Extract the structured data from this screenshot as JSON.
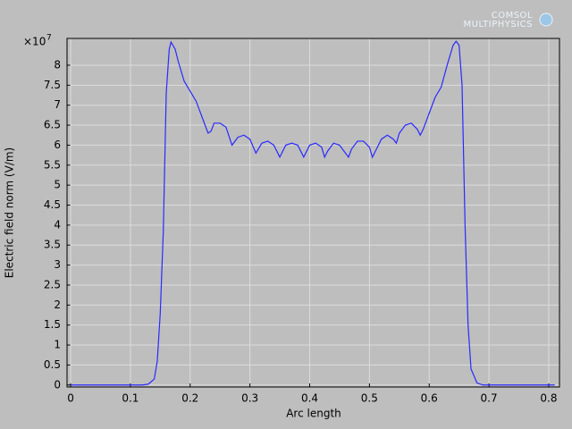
{
  "chart_data": {
    "type": "line",
    "xlabel": "Arc length",
    "ylabel": "Electric field norm (V/m)",
    "y_multiplier": {
      "base": "×10",
      "exponent": "7"
    },
    "x": [
      0,
      0.05,
      0.1,
      0.12,
      0.13,
      0.14,
      0.145,
      0.15,
      0.155,
      0.16,
      0.165,
      0.168,
      0.175,
      0.18,
      0.19,
      0.2,
      0.21,
      0.22,
      0.23,
      0.235,
      0.24,
      0.25,
      0.26,
      0.27,
      0.28,
      0.29,
      0.3,
      0.31,
      0.32,
      0.33,
      0.34,
      0.35,
      0.36,
      0.37,
      0.38,
      0.39,
      0.4,
      0.41,
      0.42,
      0.425,
      0.43,
      0.44,
      0.45,
      0.465,
      0.47,
      0.48,
      0.49,
      0.5,
      0.505,
      0.51,
      0.52,
      0.53,
      0.54,
      0.545,
      0.55,
      0.56,
      0.57,
      0.58,
      0.585,
      0.59,
      0.6,
      0.61,
      0.62,
      0.63,
      0.64,
      0.645,
      0.65,
      0.655,
      0.66,
      0.665,
      0.67,
      0.68,
      0.69,
      0.75,
      0.81
    ],
    "series": [
      {
        "name": "Electric field norm",
        "color": "#2a2aff",
        "values": [
          0,
          0,
          0,
          0,
          0.02,
          0.15,
          0.6,
          1.8,
          3.8,
          7.3,
          8.4,
          8.58,
          8.4,
          8.1,
          7.6,
          7.35,
          7.1,
          6.7,
          6.3,
          6.35,
          6.55,
          6.55,
          6.45,
          6.0,
          6.2,
          6.25,
          6.15,
          5.8,
          6.05,
          6.1,
          6.0,
          5.7,
          6.0,
          6.05,
          6.0,
          5.7,
          6.0,
          6.05,
          5.95,
          5.7,
          5.85,
          6.05,
          6.0,
          5.7,
          5.9,
          6.1,
          6.1,
          5.95,
          5.7,
          5.85,
          6.15,
          6.25,
          6.15,
          6.05,
          6.3,
          6.5,
          6.55,
          6.4,
          6.25,
          6.4,
          6.8,
          7.2,
          7.45,
          8.0,
          8.5,
          8.6,
          8.5,
          7.5,
          4.0,
          1.5,
          0.4,
          0.05,
          0,
          0,
          0
        ]
      }
    ],
    "xlim": [
      -0.006,
      0.818
    ],
    "ylim": [
      -0.05,
      8.67
    ],
    "xticks": [
      0,
      0.1,
      0.2,
      0.3,
      0.4,
      0.5,
      0.6,
      0.7,
      0.8
    ],
    "yticks": [
      0,
      0.5,
      1,
      1.5,
      2,
      2.5,
      3,
      3.5,
      4,
      4.5,
      5,
      5.5,
      6,
      6.5,
      7,
      7.5,
      8
    ],
    "grid": true
  },
  "logo": {
    "line1": "COMSOL",
    "line2": "MULTIPHYSICS"
  }
}
